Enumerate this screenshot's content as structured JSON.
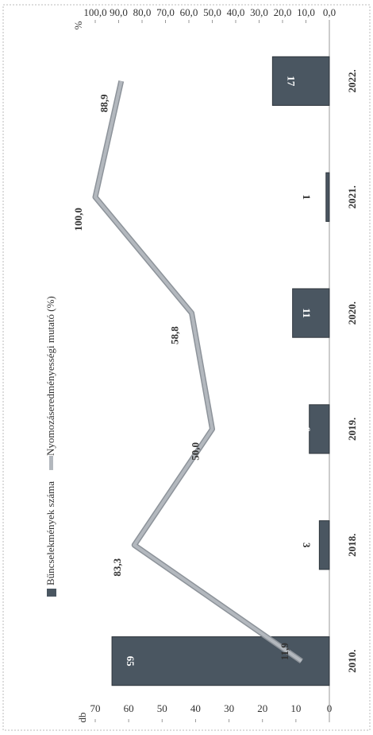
{
  "chart_data": {
    "type": "bar_line",
    "categories": [
      "2010.",
      "2018.",
      "2019.",
      "2020.",
      "2021.",
      "2022."
    ],
    "series": [
      {
        "name": "Bűncselekmények száma",
        "type": "bar",
        "color": "#4a5661",
        "values": [
          65,
          3,
          6,
          11,
          1,
          17
        ]
      },
      {
        "name": "Nyomozáseredményességi mutató (%)",
        "type": "line",
        "axis": "y2",
        "color": "#b3b8be",
        "values": [
          11.9,
          83.3,
          50.0,
          58.8,
          100.0,
          88.9
        ],
        "value_labels": [
          "11,9",
          "83,3",
          "50,0",
          "58,8",
          "100,0",
          "88,9"
        ]
      }
    ],
    "ylabel": "db",
    "y2label": "%",
    "ylim": [
      0,
      70
    ],
    "yticks": [
      0,
      10,
      20,
      30,
      40,
      50,
      60,
      70
    ],
    "y2lim": [
      0,
      100
    ],
    "y2ticks": [
      {
        "value": 0,
        "label": "0,0"
      },
      {
        "value": 10,
        "label": "10,0"
      },
      {
        "value": 20,
        "label": "20,0"
      },
      {
        "value": 30,
        "label": "30,0"
      },
      {
        "value": 40,
        "label": "40,0"
      },
      {
        "value": 50,
        "label": "50,0"
      },
      {
        "value": 60,
        "label": "60,0"
      },
      {
        "value": 70,
        "label": "70,0"
      },
      {
        "value": 80,
        "label": "80,0"
      },
      {
        "value": 90,
        "label": "90,0"
      },
      {
        "value": 100,
        "label": "100,0"
      }
    ],
    "legend": "top",
    "grid": false
  }
}
